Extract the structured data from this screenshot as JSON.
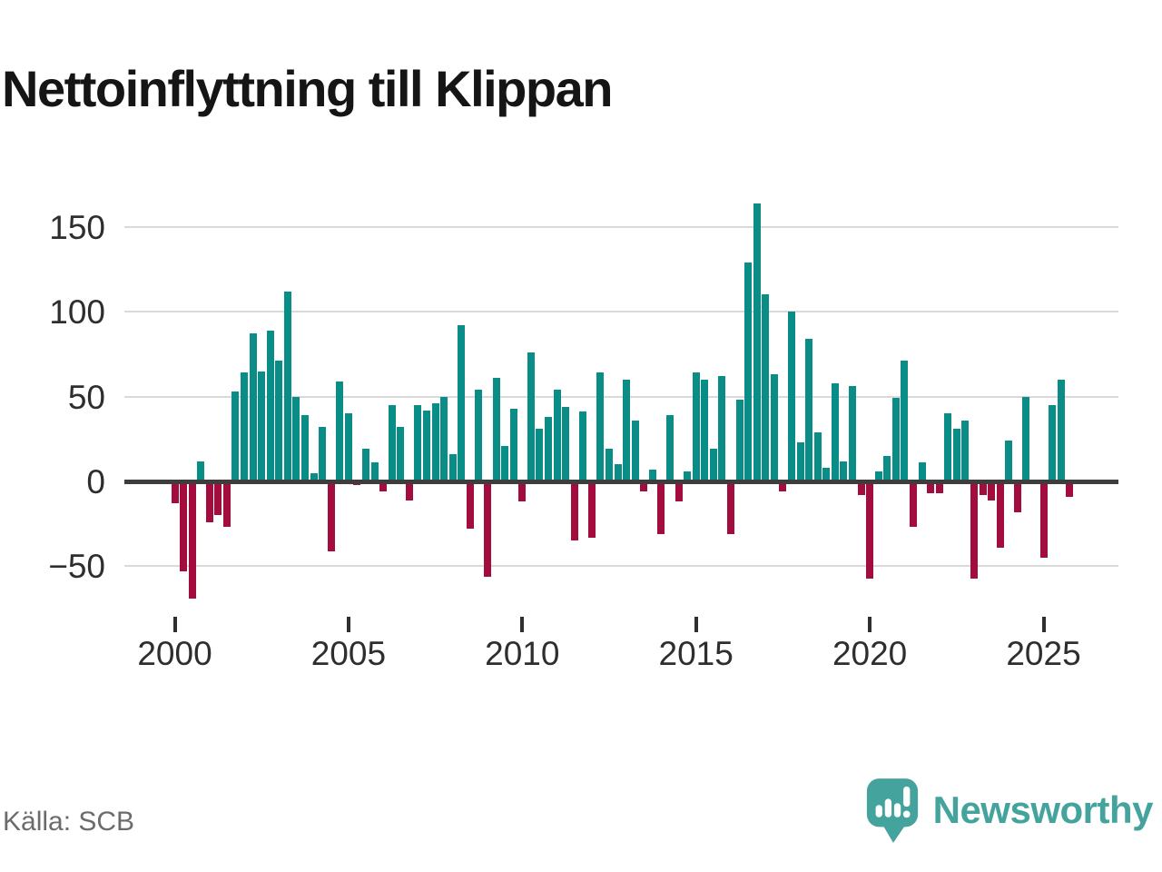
{
  "title": "Nettoinflyttning till Klippan",
  "source": "Källa: SCB",
  "brand": {
    "name": "Newsworthy",
    "icon": "newsworthy-speech-bubble-bar-chart-icon"
  },
  "chart_data": {
    "type": "bar",
    "title": "Nettoinflyttning till Klippan",
    "xlabel": "",
    "ylabel": "",
    "frequency": "quarterly",
    "grid": true,
    "legend": "none",
    "ylim": [
      -75,
      175
    ],
    "yticks": [
      {
        "value": -50,
        "label": "−50"
      },
      {
        "value": 0,
        "label": "0"
      },
      {
        "value": 50,
        "label": "50"
      },
      {
        "value": 100,
        "label": "100"
      },
      {
        "value": 150,
        "label": "150"
      }
    ],
    "xticks": [
      {
        "year": 2000,
        "label": "2000"
      },
      {
        "year": 2005,
        "label": "2005"
      },
      {
        "year": 2010,
        "label": "2010"
      },
      {
        "year": 2015,
        "label": "2015"
      },
      {
        "year": 2020,
        "label": "2020"
      },
      {
        "year": 2025,
        "label": "2025"
      }
    ],
    "colors": {
      "positive": "#0b8d87",
      "negative": "#a30d3d",
      "axis": "#3d3d3d",
      "grid": "#d9d9d9"
    },
    "years": [
      {
        "year": 2000,
        "values": [
          -13,
          -53,
          -69,
          12
        ]
      },
      {
        "year": 2001,
        "values": [
          -24,
          -20,
          -27,
          53
        ]
      },
      {
        "year": 2002,
        "values": [
          64,
          87,
          65,
          89
        ]
      },
      {
        "year": 2003,
        "values": [
          71,
          112,
          50,
          39
        ]
      },
      {
        "year": 2004,
        "values": [
          5,
          32,
          -41,
          59
        ]
      },
      {
        "year": 2005,
        "values": [
          40,
          -2,
          19,
          11
        ]
      },
      {
        "year": 2006,
        "values": [
          -6,
          45,
          32,
          -11
        ]
      },
      {
        "year": 2007,
        "values": [
          45,
          42,
          46,
          50
        ]
      },
      {
        "year": 2008,
        "values": [
          16,
          92,
          -28,
          54
        ]
      },
      {
        "year": 2009,
        "values": [
          -56,
          61,
          21,
          43
        ]
      },
      {
        "year": 2010,
        "values": [
          -12,
          76,
          31,
          38
        ]
      },
      {
        "year": 2011,
        "values": [
          54,
          44,
          -35,
          41
        ]
      },
      {
        "year": 2012,
        "values": [
          -33,
          64,
          19,
          10
        ]
      },
      {
        "year": 2013,
        "values": [
          60,
          36,
          -6,
          7
        ]
      },
      {
        "year": 2014,
        "values": [
          -31,
          39,
          -12,
          6
        ]
      },
      {
        "year": 2015,
        "values": [
          64,
          60,
          19,
          62
        ]
      },
      {
        "year": 2016,
        "values": [
          -31,
          48,
          129,
          164
        ]
      },
      {
        "year": 2017,
        "values": [
          110,
          63,
          -6,
          100
        ]
      },
      {
        "year": 2018,
        "values": [
          23,
          84,
          29,
          8
        ]
      },
      {
        "year": 2019,
        "values": [
          58,
          12,
          56,
          -8
        ]
      },
      {
        "year": 2020,
        "values": [
          -57,
          6,
          15,
          49
        ]
      },
      {
        "year": 2021,
        "values": [
          71,
          -27,
          11,
          -7
        ]
      },
      {
        "year": 2022,
        "values": [
          -7,
          40,
          31,
          36
        ]
      },
      {
        "year": 2023,
        "values": [
          -57,
          -8,
          -11,
          -39
        ]
      },
      {
        "year": 2024,
        "values": [
          24,
          -18,
          50,
          0
        ]
      },
      {
        "year": 2025,
        "values": [
          -45,
          45,
          60,
          -9
        ]
      }
    ]
  }
}
